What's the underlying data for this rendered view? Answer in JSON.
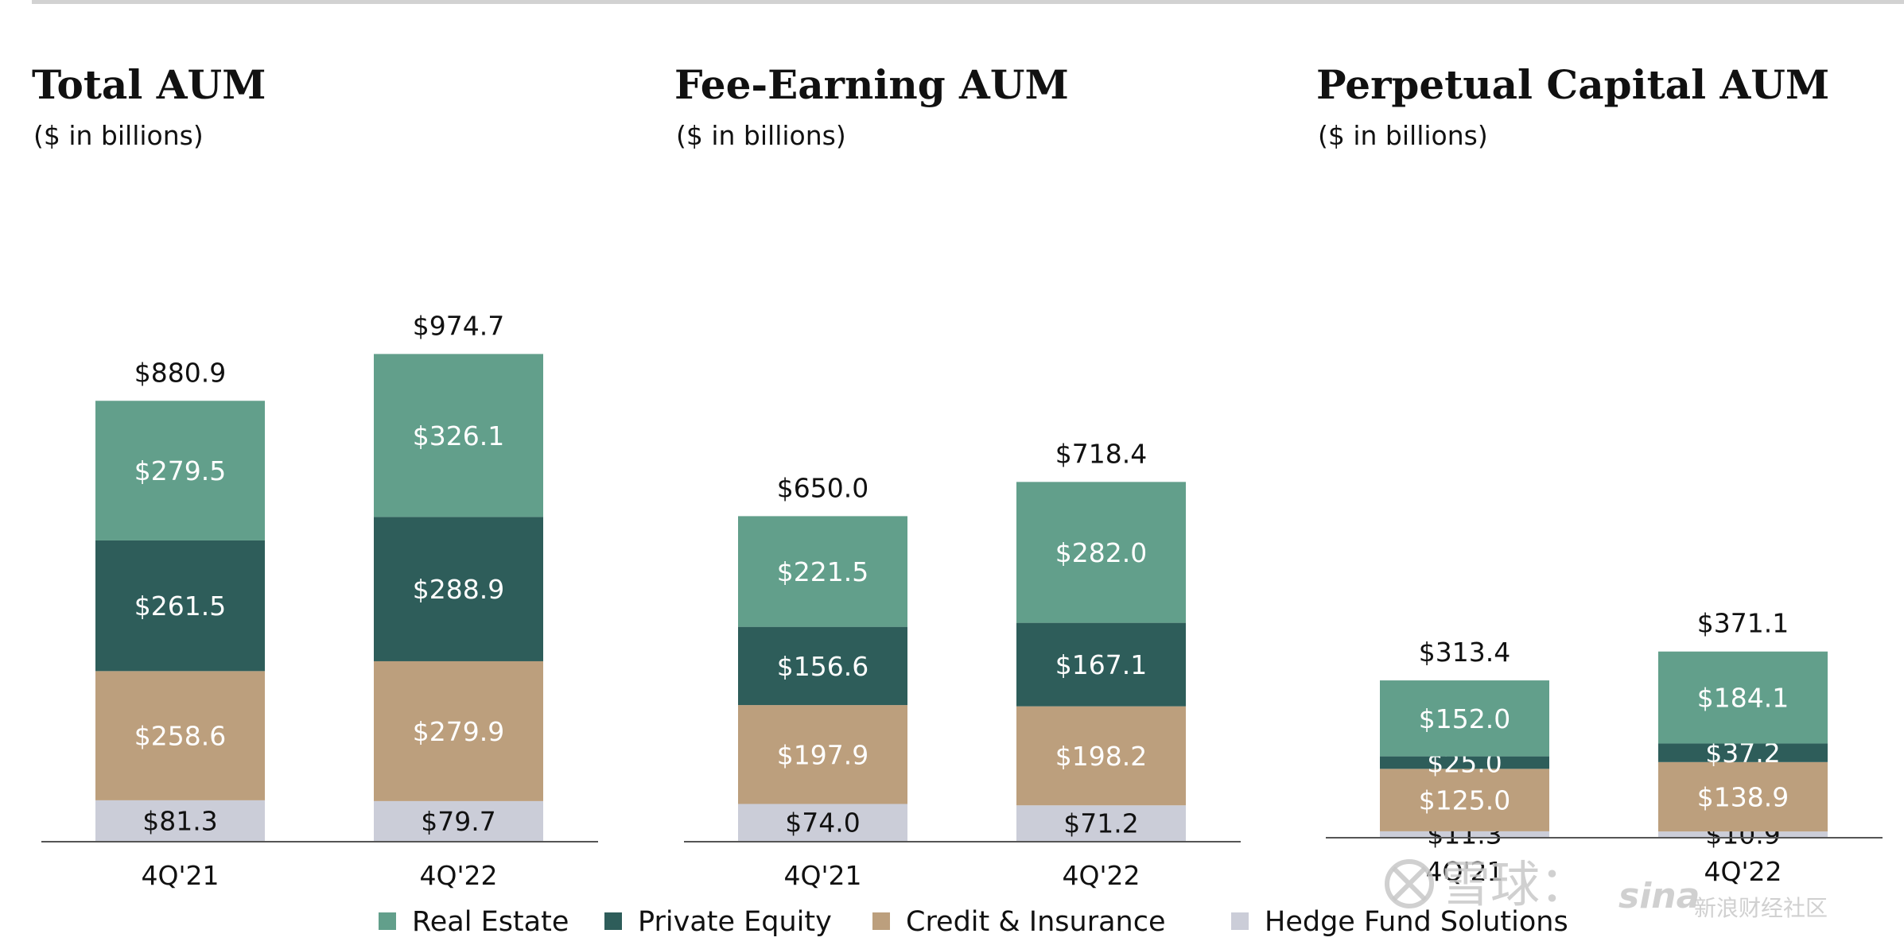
{
  "colors": {
    "real_estate": "#629f8b",
    "private_equity": "#2e5d5a",
    "credit_insurance": "#bc9f7d",
    "hedge_fund": "#cbcdd8",
    "axis": "#555555",
    "label_light": "#ffffff",
    "label_dark": "#111111"
  },
  "legend": [
    {
      "label": "Real Estate",
      "color": "#629f8b"
    },
    {
      "label": "Private Equity",
      "color": "#2e5d5a"
    },
    {
      "label": "Credit & Insurance",
      "color": "#bc9f7d"
    },
    {
      "label": "Hedge Fund Solutions",
      "color": "#cbcdd8"
    }
  ],
  "watermark": {
    "left_text": "雪球：",
    "right_text": "新浪财经社区",
    "brand": "sina",
    "icon": "xueqiu-logo-icon"
  },
  "chart_data": [
    {
      "type": "bar",
      "stacked": true,
      "title": "Total AUM",
      "subtitle": "($ in billions)",
      "categories": [
        "4Q'21",
        "4Q'22"
      ],
      "totals": [
        "$880.9",
        "$974.7"
      ],
      "series": [
        {
          "name": "Hedge Fund Solutions",
          "values": [
            81.3,
            79.7
          ],
          "labels": [
            "$81.3",
            "$79.7"
          ]
        },
        {
          "name": "Credit & Insurance",
          "values": [
            258.6,
            279.9
          ],
          "labels": [
            "$258.6",
            "$279.9"
          ]
        },
        {
          "name": "Private Equity",
          "values": [
            261.5,
            288.9
          ],
          "labels": [
            "$261.5",
            "$288.9"
          ]
        },
        {
          "name": "Real Estate",
          "values": [
            279.5,
            326.1
          ],
          "labels": [
            "$279.5",
            "$326.1"
          ]
        }
      ]
    },
    {
      "type": "bar",
      "stacked": true,
      "title": "Fee-Earning AUM",
      "subtitle": "($ in billions)",
      "categories": [
        "4Q'21",
        "4Q'22"
      ],
      "totals": [
        "$650.0",
        "$718.4"
      ],
      "series": [
        {
          "name": "Hedge Fund Solutions",
          "values": [
            74.0,
            71.2
          ],
          "labels": [
            "$74.0",
            "$71.2"
          ]
        },
        {
          "name": "Credit & Insurance",
          "values": [
            197.9,
            198.2
          ],
          "labels": [
            "$197.9",
            "$198.2"
          ]
        },
        {
          "name": "Private Equity",
          "values": [
            156.6,
            167.1
          ],
          "labels": [
            "$156.6",
            "$167.1"
          ]
        },
        {
          "name": "Real Estate",
          "values": [
            221.5,
            282.0
          ],
          "labels": [
            "$221.5",
            "$282.0"
          ]
        }
      ]
    },
    {
      "type": "bar",
      "stacked": true,
      "title": "Perpetual Capital AUM",
      "subtitle": "($ in billions)",
      "categories": [
        "4Q'21",
        "4Q'22"
      ],
      "totals": [
        "$313.4",
        "$371.1"
      ],
      "series": [
        {
          "name": "Hedge Fund Solutions",
          "values": [
            11.3,
            10.9
          ],
          "labels": [
            "$11.3",
            "$10.9"
          ]
        },
        {
          "name": "Credit & Insurance",
          "values": [
            125.0,
            138.9
          ],
          "labels": [
            "$125.0",
            "$138.9"
          ]
        },
        {
          "name": "Private Equity",
          "values": [
            25.0,
            37.2
          ],
          "labels": [
            "$25.0",
            "$37.2"
          ]
        },
        {
          "name": "Real Estate",
          "values": [
            152.0,
            184.1
          ],
          "labels": [
            "$152.0",
            "$184.1"
          ]
        }
      ]
    }
  ]
}
